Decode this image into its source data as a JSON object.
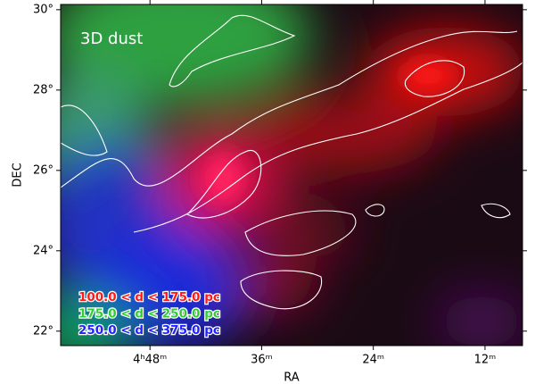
{
  "chart_data": {
    "type": "image",
    "annotation": "3D dust",
    "xlabel": "RA",
    "ylabel": "DEC",
    "xlim": [
      57.6,
      7.97
    ],
    "ylim": [
      21.64,
      30.13
    ],
    "xticks": [
      {
        "value": 48,
        "label": "4ʰ48ᵐ"
      },
      {
        "value": 36,
        "label": "36ᵐ"
      },
      {
        "value": 24,
        "label": "24ᵐ"
      },
      {
        "value": 12,
        "label": "12ᵐ"
      }
    ],
    "yticks": [
      {
        "value": 22,
        "label": "22°"
      },
      {
        "value": 24,
        "label": "24°"
      },
      {
        "value": 26,
        "label": "26°"
      },
      {
        "value": 28,
        "label": "28°"
      },
      {
        "value": 30,
        "label": "30°"
      }
    ],
    "series": [
      {
        "name": "100.0 < d < 175.0 pc",
        "color": "#ff1a1a"
      },
      {
        "name": "175.0 < d < 250.0 pc",
        "color": "#33cc33"
      },
      {
        "name": "250.0 < d < 375.0 pc",
        "color": "#2222ff"
      }
    ]
  }
}
